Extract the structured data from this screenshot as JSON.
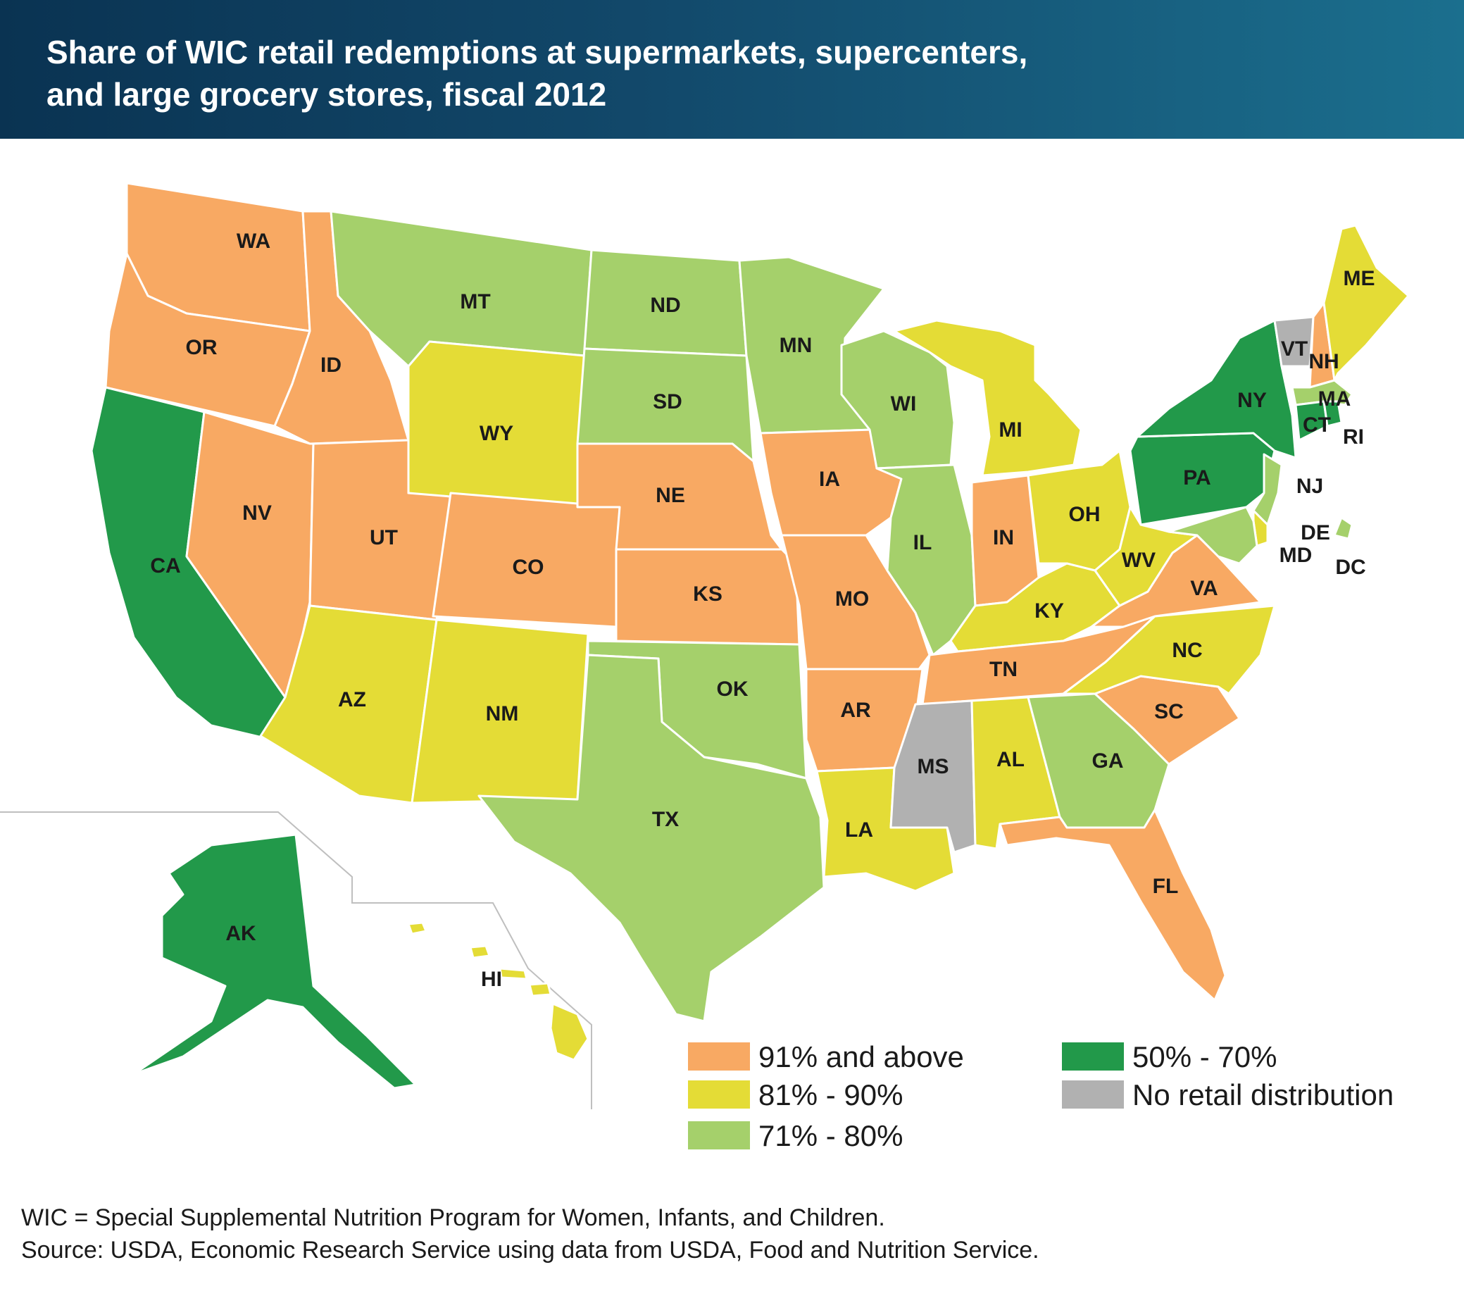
{
  "title": {
    "line1": "Share of WIC retail redemptions at supermarkets, supercenters,",
    "line2": "and large grocery stores, fiscal 2012"
  },
  "colors": {
    "cat1": "#f8a963",
    "cat2": "#e4dc36",
    "cat3": "#a5d06b",
    "cat4": "#22994a",
    "cat5": "#b1b1b1",
    "header": "#0f3f5e"
  },
  "legend": [
    {
      "key": "cat1",
      "label": "91% and above"
    },
    {
      "key": "cat2",
      "label": "81% - 90%"
    },
    {
      "key": "cat3",
      "label": "71% - 80%"
    },
    {
      "key": "cat4",
      "label": "50% - 70%"
    },
    {
      "key": "cat5",
      "label": "No retail distribution"
    }
  ],
  "states": {
    "WA": "cat1",
    "OR": "cat1",
    "CA": "cat4",
    "ID": "cat1",
    "NV": "cat1",
    "UT": "cat1",
    "AZ": "cat2",
    "MT": "cat3",
    "WY": "cat2",
    "CO": "cat1",
    "NM": "cat2",
    "ND": "cat3",
    "SD": "cat3",
    "NE": "cat1",
    "KS": "cat1",
    "OK": "cat3",
    "TX": "cat3",
    "MN": "cat3",
    "IA": "cat1",
    "MO": "cat1",
    "AR": "cat1",
    "LA": "cat2",
    "WI": "cat3",
    "IL": "cat3",
    "MI": "cat2",
    "IN": "cat1",
    "OH": "cat2",
    "KY": "cat2",
    "TN": "cat1",
    "MS": "cat5",
    "AL": "cat2",
    "GA": "cat3",
    "FL": "cat1",
    "SC": "cat1",
    "NC": "cat2",
    "VA": "cat1",
    "WV": "cat2",
    "PA": "cat4",
    "NY": "cat4",
    "VT": "cat5",
    "NH": "cat1",
    "ME": "cat2",
    "MA": "cat3",
    "CT": "cat4",
    "RI": "cat4",
    "NJ": "cat3",
    "DE": "cat2",
    "MD": "cat3",
    "DC": "cat3",
    "AK": "cat4",
    "HI": "cat2"
  },
  "labels": [
    "WA",
    "OR",
    "CA",
    "ID",
    "NV",
    "UT",
    "AZ",
    "MT",
    "WY",
    "CO",
    "NM",
    "ND",
    "SD",
    "NE",
    "KS",
    "OK",
    "TX",
    "MN",
    "IA",
    "MO",
    "AR",
    "LA",
    "WI",
    "IL",
    "MI",
    "IN",
    "OH",
    "KY",
    "TN",
    "MS",
    "AL",
    "GA",
    "FL",
    "SC",
    "NC",
    "VA",
    "WV",
    "PA",
    "NY",
    "VT",
    "NH",
    "ME",
    "MA",
    "CT",
    "RI",
    "NJ",
    "DE",
    "MD",
    "DC",
    "AK",
    "HI"
  ],
  "footnote": {
    "line1": "WIC = Special Supplemental Nutrition Program for Women, Infants, and Children.",
    "line2": "Source: USDA, Economic Research Service using data from USDA, Food and Nutrition Service."
  }
}
